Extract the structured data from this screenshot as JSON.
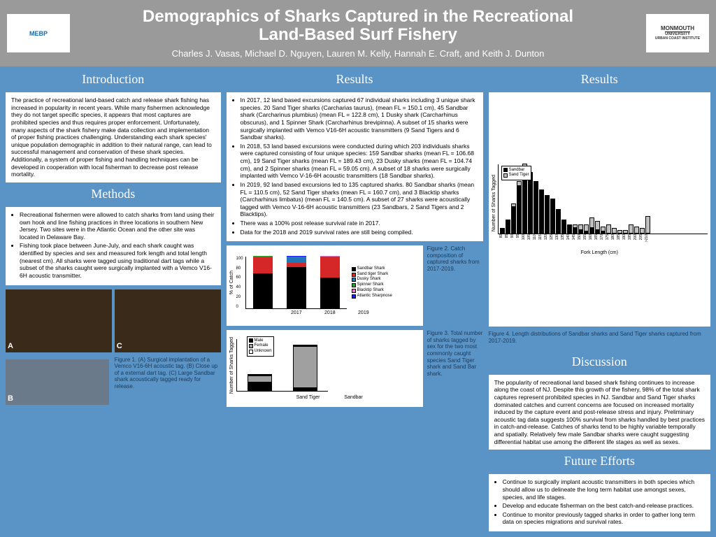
{
  "header": {
    "title_line1": "Demographics of Sharks Captured in the Recreational",
    "title_line2": "Land-Based Surf Fishery",
    "authors": "Charles J. Vasas, Michael D. Nguyen, Lauren M. Kelly, Hannah E. Craft, and Keith J. Dunton",
    "logo_left": "MEBP",
    "logo_right_line1": "MONMOUTH",
    "logo_right_line2": "UNIVERSITY",
    "logo_right_line3": "URBAN COAST INSTITUTE"
  },
  "sections": {
    "introduction": "Introduction",
    "methods": "Methods",
    "results": "Results",
    "results2": "Results",
    "discussion": "Discussion",
    "future": "Future Efforts"
  },
  "intro_text": "The practice of recreational land-based catch and release shark fishing has increased in popularity in recent years. While many fishermen acknowledge they do not target specific species, it appears that most captures are prohibited species and thus requires proper enforcement. Unfortunately, many aspects of the shark fishery make data collection and implementation of proper fishing practices challenging. Understanding each shark species' unique population demographic in addition to their natural range, can lead to successful management and conservation of these shark species. Additionally, a system of proper fishing and handling techniques can be developed in cooperation with local fisherman to decrease post release mortality.",
  "methods_items": [
    "Recreational fishermen were allowed to catch sharks from land using their own hook and line fishing practices in three locations in southern New Jersey. Two sites were in the Atlantic Ocean and the other site was located in Delaware Bay.",
    "Fishing took place between June-July, and each shark caught was identified by species and sex and measured fork length and total length (nearest cm). All sharks were tagged using traditional dart tags while a subset of the sharks caught were surgically implanted with a Vemco V16-6H acoustic transmitter."
  ],
  "fig1_caption": "Figure 1. (A) Surgical implantation of a Vemco V16-6H acoustic tag. (B) Close up of a external dart tag. (C) Large Sandbar shark acoustically tagged ready for release.",
  "results_items": [
    "In 2017, 12 land based excursions captured 67 individual sharks including 3 unique shark species. 20 Sand Tiger sharks (Carcharias taurus), (mean FL = 150.1 cm), 45 Sandbar shark (Carcharinus plumbius) (mean FL = 122.8 cm), 1 Dusky shark (Carcharhinus obscurus), and 1 Spinner Shark (Carcharhinus brevipinna). A subset of 15 sharks were surgically implanted with Vemco V16-6H acoustic transmitters (9 Sand Tigers and 6 Sandbar sharks).",
    "In 2018, 53 land based excursions were conducted during which 203 individuals sharks were captured consisting of four unique species: 159 Sandbar sharks (mean FL = 106.68 cm), 19 Sand Tiger sharks (mean FL = 189.43 cm), 23 Dusky sharks (mean FL = 104.74 cm), and 2 Spinner sharks (mean FL = 59.05 cm). A subset of 18 sharks were surgically implanted with Vemco V-16-6H acoustic transmitters (18 Sandbar sharks).",
    "In 2019, 92 land based excursions led to 135 captured sharks. 80 Sandbar sharks (mean FL = 110.5 cm), 52 Sand Tiger sharks (mean FL = 160.7 cm), and 3 Blacktip sharks (Carcharhinus limbatus) (mean FL = 140.5 cm). A subset of 27 sharks were acoustically tagged with Vemco V-16-6H acoustic transmitters (23 Sandbars, 2 Sand Tigers and 2 Blacktips).",
    "There was a 100% post release survival rate in 2017.",
    "Data for the 2018 and 2019 survival rates are still being compiled."
  ],
  "fig2_caption": "Figure 2. Catch composition of captured sharks from 2017-2019.",
  "fig3_caption": "Figure 3. Total number of sharks tagged by sex for the two most commonly caught species Sand Tiger shark and Sand Bar shark.",
  "fig4_caption": "Figure 4. Length distributions of Sandbar sharks and Sand Tiger sharks captured from 2017-2019.",
  "discussion_text": "The popularity of recreational land based shark fishing continues to increase along the coast of NJ. Despite this growth of the fishery, 98% of the total shark captures represent prohibited species in NJ. Sandbar and Sand Tiger sharks dominated catches and current concerns are focused on increased mortality induced by the capture event and post-release stress and injury. Preliminary acoustic tag data suggests 100% survival from sharks handled by best practices in catch-and-release. Catches of sharks tend to be highly variable temporally and spatially. Relatively few male Sandbar sharks were caught suggesting differential habitat use among the different life stages as well as sexes.",
  "future_items": [
    "Continue to surgically implant acoustic transmitters in both species which should allow us to delineate the long term habitat use amongst sexes, species, and life stages.",
    "Develop and educate fisherman on the best catch-and-release practices.",
    "Continue to monitor previously tagged sharks in order to gather long term data on species migrations and survival rates."
  ],
  "chart2": {
    "years": [
      "2017",
      "2018",
      "2019"
    ],
    "ylabel": "% of Catch",
    "series": [
      {
        "name": "Sandbar Shark",
        "color": "#000000"
      },
      {
        "name": "Sand tiger Shark",
        "color": "#d62728"
      },
      {
        "name": "Dusky Shark",
        "color": "#1f77b4"
      },
      {
        "name": "Spinner Shark",
        "color": "#2ca02c"
      },
      {
        "name": "Blacktip Shark",
        "color": "#e377c2"
      },
      {
        "name": "Atlantic Sharpnose",
        "color": "#1a1aff"
      }
    ],
    "data": [
      {
        "sandbar": 67,
        "sandtiger": 30,
        "dusky": 1.5,
        "spinner": 1.5,
        "blacktip": 0,
        "sharpnose": 0
      },
      {
        "sandbar": 78,
        "sandtiger": 9,
        "dusky": 11,
        "spinner": 1,
        "blacktip": 0,
        "sharpnose": 1
      },
      {
        "sandbar": 59,
        "sandtiger": 39,
        "dusky": 0,
        "spinner": 0,
        "blacktip": 2,
        "sharpnose": 0
      }
    ]
  },
  "chart3": {
    "species": [
      "Sand Tiger",
      "Sandbar"
    ],
    "ylabel": "Number of Sharks Tagged",
    "ymax": 350,
    "series": [
      {
        "name": "Male",
        "color": "#000000"
      },
      {
        "name": "Female",
        "color": "#a0a0a0"
      },
      {
        "name": "Unknown",
        "color": "#ffffff"
      }
    ],
    "data": [
      {
        "male": 55,
        "female": 50,
        "unknown": 5
      },
      {
        "male": 18,
        "female": 280,
        "unknown": 10
      }
    ]
  },
  "chart4": {
    "xlabel": "Fork Length (cm)",
    "ylabel": "Number of Sharks Tagged",
    "ymax": 40,
    "series": [
      {
        "name": "Sandbar",
        "color": "#000000"
      },
      {
        "name": "Sand Tiger",
        "color": "#c0c0c0"
      }
    ],
    "bins": [
      "80",
      "85",
      "90",
      "95",
      "100",
      "105",
      "110",
      "115",
      "120",
      "125",
      "130",
      "135",
      "140",
      "145",
      "150",
      "155",
      "160",
      "165",
      "170",
      "175",
      "180",
      "185",
      "190",
      "195",
      "200",
      "205",
      ">210"
    ],
    "sandbar": [
      3,
      8,
      15,
      27,
      38,
      35,
      30,
      25,
      22,
      20,
      14,
      8,
      5,
      3,
      2,
      1,
      3,
      2,
      1,
      0,
      0,
      0,
      0,
      0,
      0,
      0,
      0
    ],
    "sandtiger": [
      0,
      0,
      2,
      3,
      2,
      0,
      0,
      0,
      0,
      0,
      0,
      0,
      0,
      2,
      3,
      4,
      6,
      5,
      3,
      5,
      3,
      2,
      2,
      5,
      4,
      3,
      10
    ]
  },
  "colors": {
    "bg": "#5a94c7",
    "header_bg": "#9a9a9a",
    "box_bg": "#ffffff",
    "caption_color": "#1a3a5a"
  },
  "fig2_yticks": [
    "0",
    "20",
    "40",
    "60",
    "80",
    "100"
  ]
}
